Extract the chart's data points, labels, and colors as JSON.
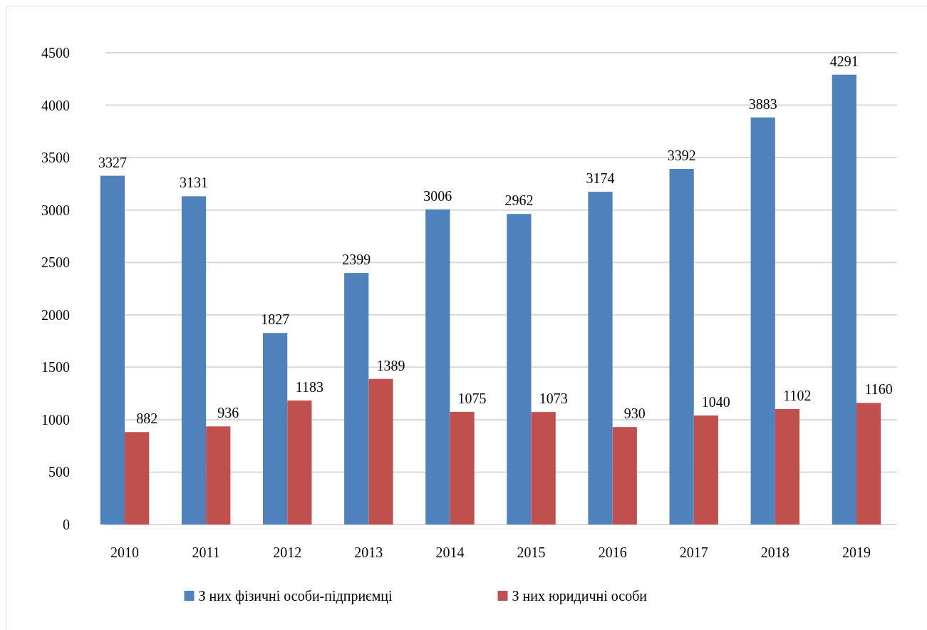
{
  "chart_data": {
    "type": "bar",
    "categories": [
      "2010",
      "2011",
      "2012",
      "2013",
      "2014",
      "2015",
      "2016",
      "2017",
      "2018",
      "2019"
    ],
    "series": [
      {
        "name": "З них фізичні особи-підприємці",
        "color": "#4f81bd",
        "values": [
          3327,
          3131,
          1827,
          2399,
          3006,
          2962,
          3174,
          3392,
          3883,
          4291
        ]
      },
      {
        "name": "З них юридичні особи",
        "color": "#c0504d",
        "values": [
          882,
          936,
          1183,
          1389,
          1075,
          1073,
          930,
          1040,
          1102,
          1160
        ]
      }
    ],
    "ylim": [
      0,
      4500
    ],
    "yticks": [
      0,
      500,
      1000,
      1500,
      2000,
      2500,
      3000,
      3500,
      4000,
      4500
    ],
    "grid": "y",
    "legend": "bottom",
    "data_labels": true
  }
}
